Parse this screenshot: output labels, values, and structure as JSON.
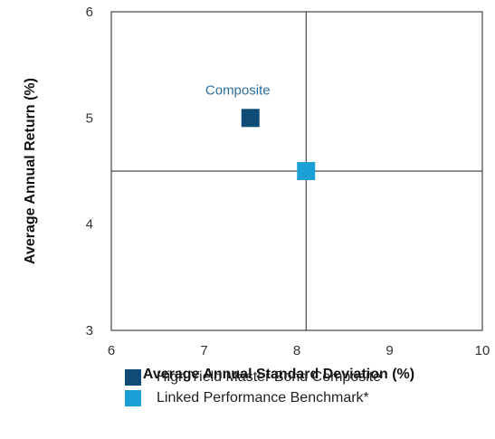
{
  "chart_data": {
    "type": "scatter",
    "xlabel": "Average Annual Standard Deviation (%)",
    "ylabel": "Average Annual Return (%)",
    "xlim": [
      6,
      10
    ],
    "ylim": [
      3,
      6
    ],
    "xticks": [
      "6",
      "7",
      "8",
      "9",
      "10"
    ],
    "yticks": [
      "3",
      "4",
      "5",
      "6"
    ],
    "crosshair": {
      "x": 8.1,
      "y": 4.5
    },
    "series": [
      {
        "name": "High Yield Master Bond Composite",
        "x": 7.5,
        "y": 5.0,
        "color": "#0f4c75",
        "marker": "square"
      },
      {
        "name": "Linked Performance Benchmark*",
        "x": 8.1,
        "y": 4.5,
        "color": "#1a9fd6",
        "marker": "square"
      }
    ],
    "annotations": [
      {
        "text": "Composite",
        "x": 7.5,
        "y": 5.0,
        "color": "#2e6e9e"
      }
    ],
    "grid": false,
    "legend_position": "bottom"
  }
}
